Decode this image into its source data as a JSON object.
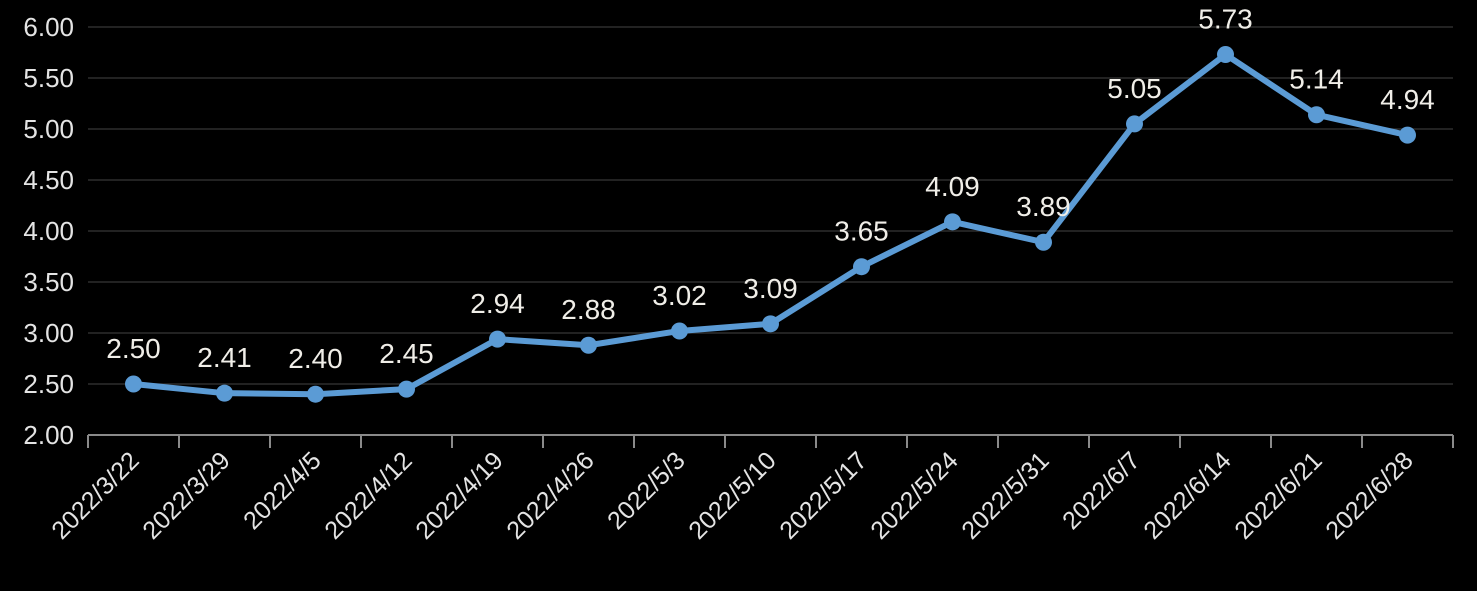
{
  "chart_data": {
    "type": "line",
    "title": "",
    "xlabel": "",
    "ylabel": "",
    "categories": [
      "2022/3/22",
      "2022/3/29",
      "2022/4/5",
      "2022/4/12",
      "2022/4/19",
      "2022/4/26",
      "2022/5/3",
      "2022/5/10",
      "2022/5/17",
      "2022/5/24",
      "2022/5/31",
      "2022/6/7",
      "2022/6/14",
      "2022/6/21",
      "2022/6/28"
    ],
    "values": [
      2.5,
      2.41,
      2.4,
      2.45,
      2.94,
      2.88,
      3.02,
      3.09,
      3.65,
      4.09,
      3.89,
      5.05,
      5.73,
      5.14,
      4.94
    ],
    "value_labels": [
      "2.50",
      "2.41",
      "2.40",
      "2.45",
      "2.94",
      "2.88",
      "3.02",
      "3.09",
      "3.65",
      "4.09",
      "3.89",
      "5.05",
      "5.73",
      "5.14",
      "4.94"
    ],
    "ylim": [
      2.0,
      6.0
    ],
    "ytick_step": 0.5,
    "ytick_labels": [
      "2.00",
      "2.50",
      "3.00",
      "3.50",
      "4.00",
      "4.50",
      "5.00",
      "5.50",
      "6.00"
    ],
    "grid": true,
    "legend": "none",
    "marker": "circle",
    "colors": {
      "background": "#000000",
      "line": "#5B9BD5",
      "marker": "#5B9BD5",
      "gridline": "#2d2d2d",
      "axis": "#8a8a8a",
      "axis_tick_label": "#e4e4e4",
      "data_label": "#f0eee8"
    }
  }
}
